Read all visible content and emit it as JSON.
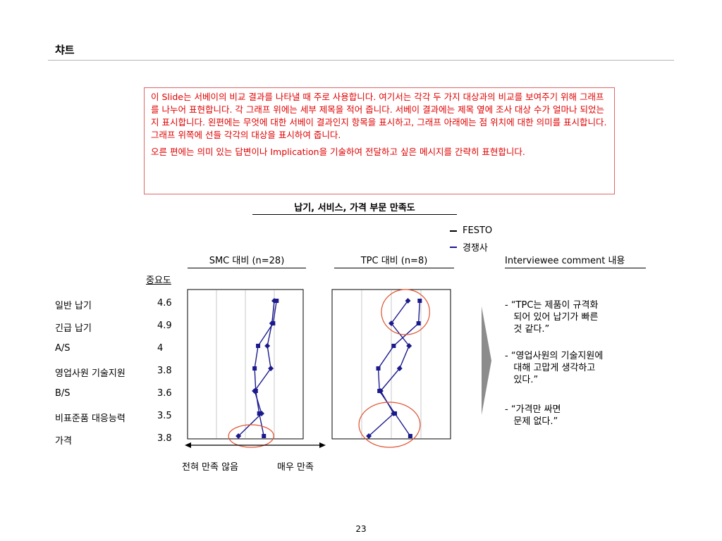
{
  "slide_title": "챠트",
  "note": {
    "paragraph1": "이 Slide는 서베이의 비교 결과를 나타낼 때 주로 사용합니다. 여기서는 각각 두 가지 대상과의 비교를 보여주기 위해 그래프를 나누어 표현합니다. 각 그래프 위에는 세부 제목을 적어 줍니다. 서베이 결과에는 제목 옆에 조사 대상 수가 얼마나 되었는지 표시합니다. 왼편에는 무엇에 대한 서베이 결과인지 항목을 표시하고, 그래프 아래에는 점 위치에 대한 의미를 표시합니다. 그래프 위쪽에 선들 각각의 대상을 표시하여 줍니다.",
    "paragraph2": "오른 편에는 의미 있는 답변이나 Implication을 기술하여 전달하고 싶은 메시지를 간략히 표현합니다."
  },
  "chart_data": {
    "type": "line",
    "title": "납기, 서비스, 가격 부문 만족도",
    "importance_header": "중요도",
    "categories": [
      "일반 납기",
      "긴급 납기",
      "A/S",
      "영업사원 기술지원",
      "B/S",
      "비표준품 대응능력",
      "가격"
    ],
    "importance": [
      "4.6",
      "4.9",
      "4",
      "3.8",
      "3.6",
      "3.5",
      "3.8"
    ],
    "legend": [
      {
        "name": "FESTO",
        "color": "#000000"
      },
      {
        "name": "경쟁사",
        "color": "#1a1a8c"
      }
    ],
    "xlim": [
      0,
      1
    ],
    "panels": [
      {
        "title": "SMC 대비 (n=28)",
        "series": [
          {
            "name": "FESTO",
            "marker": "square",
            "values": [
              0.77,
              0.74,
              0.61,
              0.58,
              0.59,
              0.62,
              0.66
            ]
          },
          {
            "name": "경쟁사",
            "marker": "diamond",
            "values": [
              0.75,
              0.73,
              0.69,
              0.72,
              0.58,
              0.64,
              0.44
            ]
          }
        ],
        "circled": [
          6
        ]
      },
      {
        "title": "TPC 대비 (n=8)",
        "series": [
          {
            "name": "FESTO",
            "marker": "square",
            "values": [
              0.74,
              0.73,
              0.52,
              0.39,
              0.4,
              0.53,
              0.66
            ]
          },
          {
            "name": "경쟁사",
            "marker": "diamond",
            "values": [
              0.64,
              0.5,
              0.65,
              0.57,
              0.41,
              0.52,
              0.31
            ]
          }
        ],
        "circled": [
          0,
          1,
          5,
          6
        ]
      }
    ],
    "x_scale_left": "전혀 만족 않음",
    "x_scale_right": "매우 만족"
  },
  "comments": {
    "title": "Interviewee comment 내용",
    "items": [
      [
        "- “TPC는 제품이 규격화",
        "   되어 있어 납기가 빠른",
        "   것 같다.”"
      ],
      [
        "- “영업사원의 기술지원에",
        "   대해 고맙게 생각하고",
        "   있다.”"
      ],
      [
        "- “가격만 싸면",
        "   문제 없다.”"
      ]
    ]
  },
  "page_number": "23",
  "colors": {
    "note_text": "#e00000",
    "note_border": "#e06666",
    "series_line": "#1a1a8c",
    "highlight_circle": "#e0522f",
    "arrow_fill": "#8c8c8c",
    "grid": "#c8c8c8"
  }
}
